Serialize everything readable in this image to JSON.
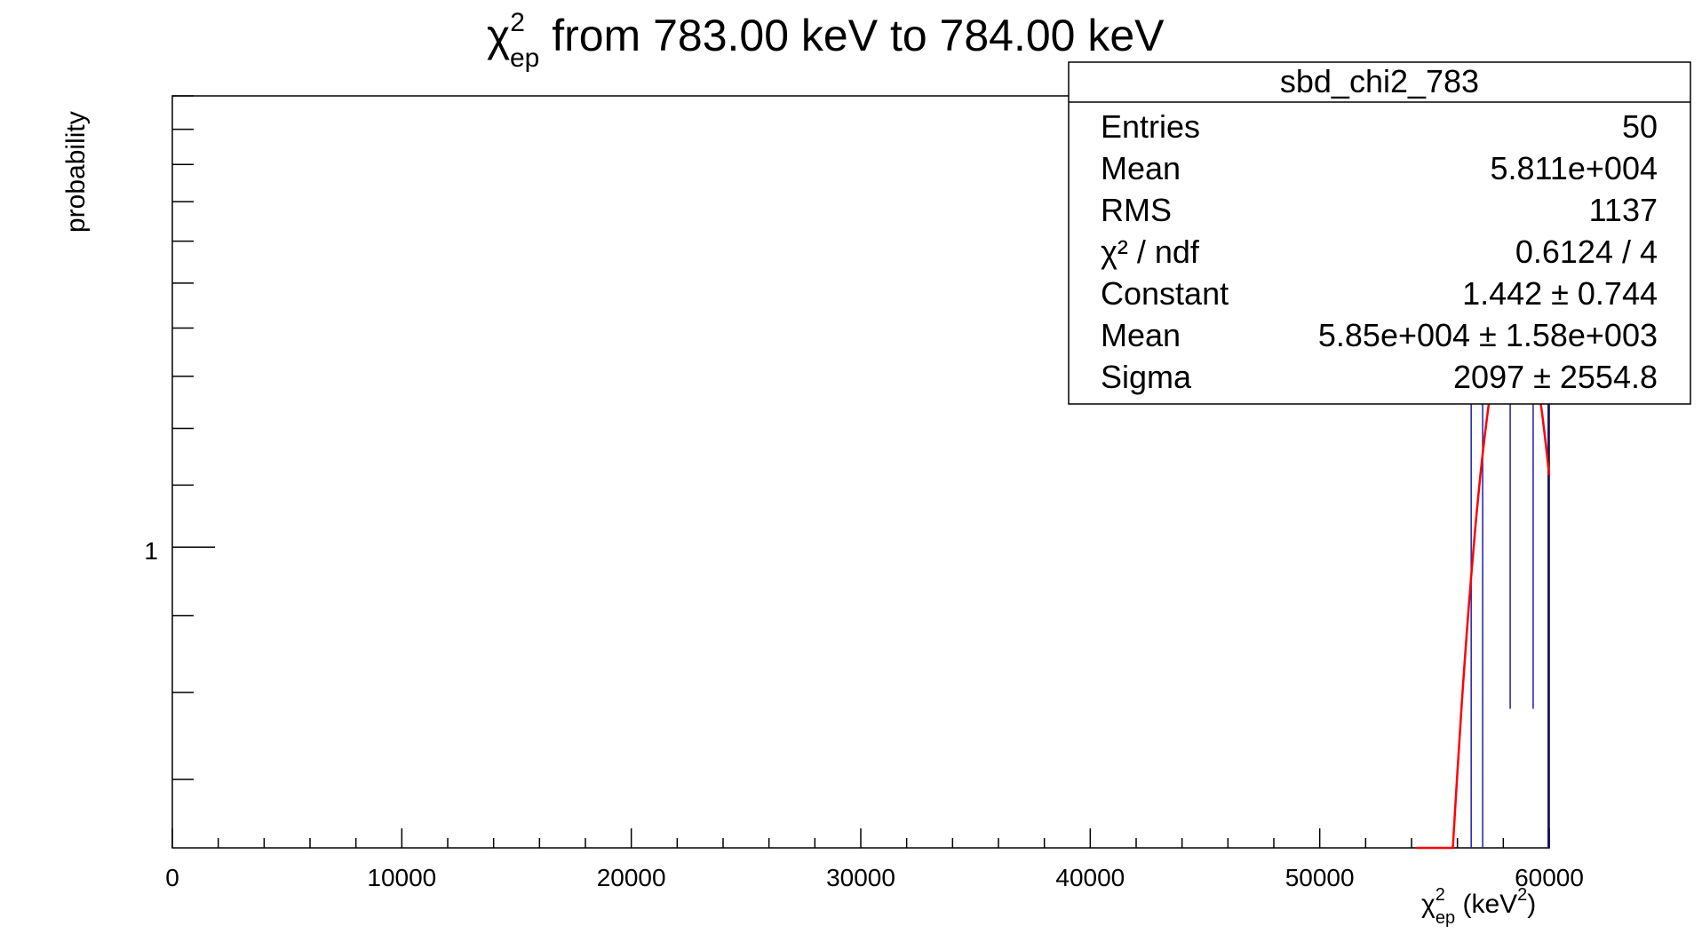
{
  "title": {
    "symbol": "χ",
    "sup": "2",
    "sub": "ep",
    "text": " from 783.00 keV to 784.00 keV"
  },
  "y_axis": {
    "label": "probability",
    "tick_label": "1"
  },
  "x_axis": {
    "symbol": "χ",
    "sup": "2",
    "sub": "ep",
    "unit_open": " (keV",
    "unit_sup": "2",
    "unit_close": ")"
  },
  "stats_box": {
    "name": "sbd_chi2_783",
    "rows": [
      {
        "key": "Entries",
        "value": "50"
      },
      {
        "key": "Mean",
        "value": "5.811e+004"
      },
      {
        "key": "RMS",
        "value": "1137"
      },
      {
        "key": "χ² / ndf",
        "value": "0.6124 / 4"
      },
      {
        "key": "Constant",
        "value": "1.442 ± 0.744"
      },
      {
        "key": "Mean",
        "value": "5.85e+004 ± 1.58e+003"
      },
      {
        "key": "Sigma",
        "value": "2097 ± 2554.8"
      }
    ]
  },
  "colors": {
    "fit": "#ff0000",
    "histogram": "#1f1fa8",
    "axis": "#000000"
  },
  "chart_data": {
    "type": "line",
    "log_y": true,
    "xlim": [
      0,
      60000
    ],
    "ylim": [
      0.63,
      2.0
    ],
    "x_ticks": [
      0,
      10000,
      20000,
      30000,
      40000,
      50000,
      60000
    ],
    "x_tick_labels": [
      "0",
      "10000",
      "20000",
      "30000",
      "40000",
      "50000",
      "60000"
    ],
    "y_ticks": [
      1
    ],
    "grid": false,
    "legend": "top-right stats box",
    "series": [
      {
        "kind": "histogram_errorbars",
        "x": [
          56600,
          57100,
          58300,
          59300,
          59950
        ],
        "lower": [
          0.63,
          0.63,
          0.78,
          0.78,
          0.63
        ],
        "upper": [
          2.0,
          2.0,
          2.0,
          2.0,
          2.0
        ]
      },
      {
        "kind": "gaussian_fit",
        "constant": 1.442,
        "mean": 58500,
        "sigma": 2097,
        "x_start": 54200,
        "x_end": 60000
      }
    ]
  }
}
